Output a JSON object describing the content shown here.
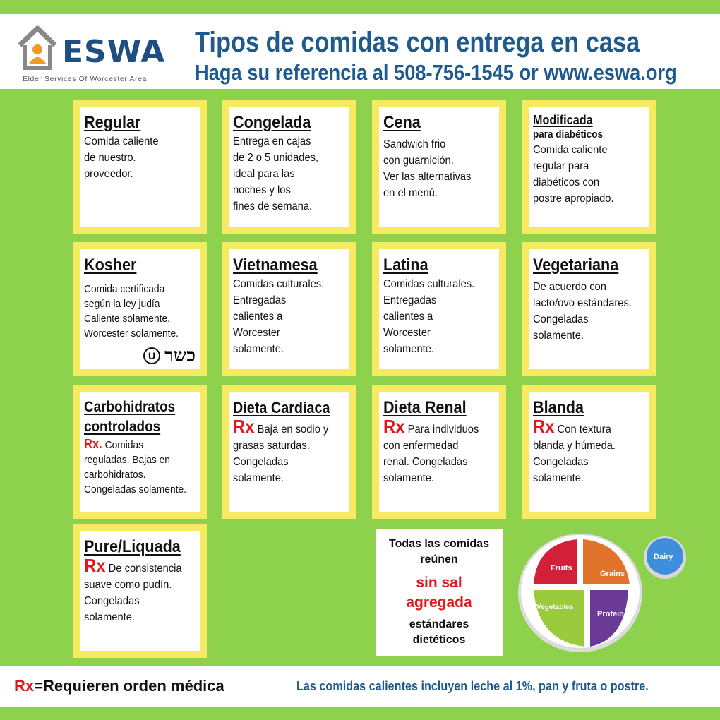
{
  "logo": {
    "name": "ESWA",
    "tagline": "Elder Services Of Worcester Area"
  },
  "header": {
    "title": "Tipos de comidas con entrega en casa",
    "subtitle": "Haga su referencia al 508-756-1545 or www.eswa.org"
  },
  "cards": {
    "regular": {
      "title": "Regular",
      "lines": [
        "Comida caliente",
        "de nuestro.",
        "proveedor."
      ]
    },
    "congelada": {
      "title": "Congelada",
      "lines": [
        "Entrega en cajas",
        "de 2 o 5 unidades,",
        "ideal para las",
        "noches y los",
        "fines de semana."
      ]
    },
    "cena": {
      "title": "Cena",
      "lines": [
        "Sandwich frio",
        "con guarnición.",
        "Ver las alternativas",
        "en el menú."
      ]
    },
    "modificada": {
      "title": "Modificada",
      "subtitle": "para diabéticos",
      "lines": [
        "Comida caliente",
        "regular para",
        "diabéticos con",
        "postre apropiado."
      ]
    },
    "kosher": {
      "title": "Kosher",
      "lines": [
        "Comida certificada",
        "según la ley judía",
        "Caliente solamente.",
        "Worcester solamente."
      ],
      "symbol": "U",
      "hebrew": "כשר"
    },
    "vietnamesa": {
      "title": "Vietnamesa",
      "lines": [
        "Comidas culturales.",
        "Entregadas",
        "calientes a",
        "Worcester",
        "solamente."
      ]
    },
    "latina": {
      "title": "Latina",
      "lines": [
        "Comidas culturales.",
        "Entregadas",
        "calientes a",
        "Worcester",
        "solamente."
      ]
    },
    "vegetariana": {
      "title": "Vegetariana",
      "lines": [
        "De acuerdo con",
        "lacto/ovo estándares.",
        "Congeladas",
        "solamente."
      ]
    },
    "carbohidratos": {
      "title1": "Carbohidratos",
      "title2": "controlados",
      "rx": "Rx",
      "rx_suffix": ".",
      "first": " Comidas",
      "lines": [
        "reguladas. Bajas en",
        "carbohidratos.",
        "Congeladas solamente."
      ]
    },
    "cardiaca": {
      "title": "Dieta Cardiaca",
      "rx": "Rx",
      "first": " Baja en sodio y",
      "lines": [
        "grasas saturdas.",
        "Congeladas",
        "solamente."
      ]
    },
    "renal": {
      "title": "Dieta Renal",
      "rx": "Rx",
      "first": " Para individuos",
      "lines": [
        "con enfermedad",
        "renal. Congeladas",
        "solamente."
      ]
    },
    "blanda": {
      "title": "Blanda",
      "rx": "Rx",
      "first": " Con textura",
      "lines": [
        "blanda y húmeda.",
        "Congeladas",
        "solamente."
      ]
    },
    "pure": {
      "title": "Pure/Liquada",
      "rx": "Rx",
      "first": " De consistencia",
      "lines": [
        "suave como pudín.",
        "Congeladas",
        "solamente."
      ]
    }
  },
  "note": {
    "line1": "Todas las comidas",
    "line2": "reúnen",
    "red1": "sin sal",
    "red2": "agregada",
    "line3": "estándares",
    "line4": "dietéticos"
  },
  "plate": {
    "fruits": "Fruits",
    "grains": "Grains",
    "vegetables": "Vegetables",
    "protein": "Protein",
    "dairy": "Dairy",
    "colors": {
      "fruits": "#d3203a",
      "grains": "#e1742a",
      "vegetables": "#9acb3c",
      "protein": "#6a3a96",
      "dairy": "#3e8edb"
    }
  },
  "footer": {
    "rx": "Rx",
    "rx_text": "=Requieren orden médica",
    "right": "Las comidas calientes incluyen leche al 1%, pan y fruta o postre."
  }
}
